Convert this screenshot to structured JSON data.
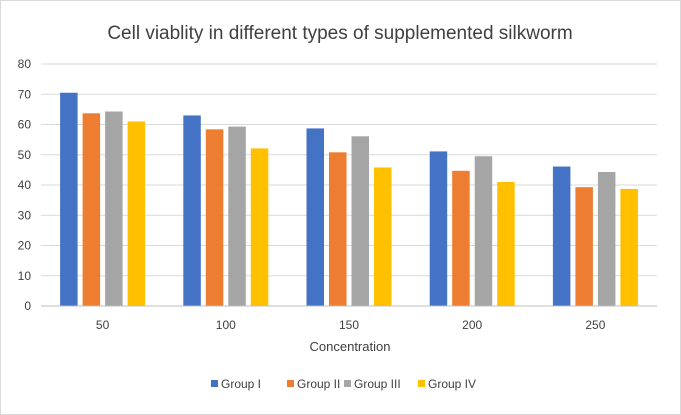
{
  "chart_data": {
    "type": "bar",
    "title": "Cell viablity in different types of supplemented silkworm",
    "xlabel": "Concentration",
    "ylabel": "",
    "categories": [
      "50",
      "100",
      "150",
      "200",
      "250"
    ],
    "ylim": [
      0,
      80
    ],
    "yticks": [
      0,
      10,
      20,
      30,
      40,
      50,
      60,
      70,
      80
    ],
    "grid": true,
    "legend_position": "bottom",
    "series": [
      {
        "name": "Group I",
        "color": "#4472C4",
        "values": [
          70.5,
          63,
          58.7,
          51.1,
          46.1
        ]
      },
      {
        "name": "Group II",
        "color": "#ED7D31",
        "values": [
          63.7,
          58.4,
          50.8,
          44.7,
          39.3
        ]
      },
      {
        "name": "Group III",
        "color": "#A5A5A5",
        "values": [
          64.3,
          59.3,
          56.1,
          49.5,
          44.3
        ]
      },
      {
        "name": "Group IV",
        "color": "#FFC000",
        "values": [
          61,
          52.1,
          45.8,
          41,
          38.7
        ]
      }
    ]
  }
}
